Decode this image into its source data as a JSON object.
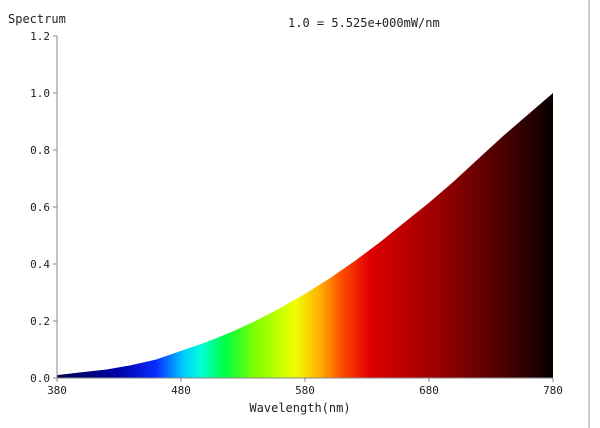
{
  "chart_data": {
    "type": "area",
    "title": "Spectrum",
    "annotation": "1.0 = 5.525e+000mW/nm",
    "xlabel": "Wavelength(nm)",
    "ylabel": "",
    "xlim": [
      380,
      780
    ],
    "ylim": [
      0,
      1.2
    ],
    "x_ticks": [
      380,
      480,
      580,
      680,
      780
    ],
    "x_tick_labels": [
      "380",
      "480",
      "580",
      "680",
      "780"
    ],
    "y_ticks": [
      0,
      0.2,
      0.4,
      0.6,
      0.8,
      1.0,
      1.2
    ],
    "y_tick_labels": [
      "0.0",
      "0.2",
      "0.4",
      "0.6",
      "0.8",
      "1.0",
      "1.2"
    ],
    "grid": false,
    "fill": "spectral-gradient",
    "x": [
      380,
      400,
      420,
      440,
      460,
      480,
      500,
      520,
      540,
      560,
      580,
      600,
      620,
      640,
      660,
      680,
      700,
      720,
      740,
      760,
      780
    ],
    "values": [
      0.01,
      0.02,
      0.03,
      0.045,
      0.065,
      0.095,
      0.125,
      0.16,
      0.2,
      0.245,
      0.295,
      0.35,
      0.41,
      0.475,
      0.545,
      0.615,
      0.69,
      0.77,
      0.85,
      0.925,
      1.0
    ]
  },
  "colors": {
    "axis": "#888888",
    "text": "#222222",
    "border": "#999999"
  }
}
